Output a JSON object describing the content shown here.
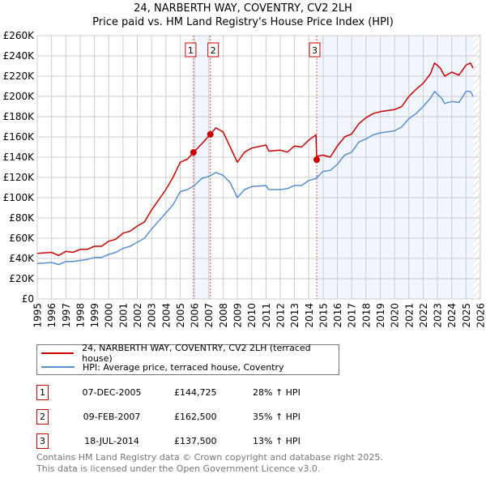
{
  "chart_data": {
    "type": "line",
    "title": "24, NARBERTH WAY, COVENTRY, CV2 2LH",
    "subtitle": "Price paid vs. HM Land Registry's House Price Index (HPI)",
    "xlim": [
      1995,
      2026
    ],
    "ylim": [
      0,
      260000
    ],
    "grid": true,
    "x_ticks": [
      "1995",
      "1996",
      "1997",
      "1998",
      "1999",
      "2000",
      "2001",
      "2002",
      "2003",
      "2004",
      "2005",
      "2006",
      "2007",
      "2008",
      "2009",
      "2010",
      "2011",
      "2012",
      "2013",
      "2014",
      "2015",
      "2016",
      "2017",
      "2018",
      "2019",
      "2020",
      "2021",
      "2022",
      "2023",
      "2024",
      "2025",
      "2026"
    ],
    "y_ticks": [
      "£0",
      "£20K",
      "£40K",
      "£60K",
      "£80K",
      "£100K",
      "£120K",
      "£140K",
      "£160K",
      "£180K",
      "£200K",
      "£220K",
      "£240K",
      "£260K"
    ],
    "series": [
      {
        "name": "24, NARBERTH WAY, COVENTRY, CV2 2LH (terraced house)",
        "color": "#cc0000",
        "x": [
          1995,
          1996,
          1996.5,
          1997,
          1997.5,
          1998,
          1998.5,
          1999,
          1999.5,
          2000,
          2000.5,
          2001,
          2001.5,
          2002,
          2002.5,
          2003,
          2003.5,
          2004,
          2004.5,
          2005,
          2005.5,
          2005.93,
          2006.5,
          2007.1,
          2007.5,
          2008,
          2008.5,
          2009,
          2009.5,
          2010,
          2011,
          2011.2,
          2012,
          2012.5,
          2013,
          2013.5,
          2014,
          2014.5,
          2014.55,
          2014.6,
          2015,
          2015.5,
          2016,
          2016.5,
          2017,
          2017.5,
          2018,
          2018.5,
          2019,
          2019.5,
          2020,
          2020.5,
          2021,
          2021.5,
          2022,
          2022.5,
          2022.8,
          2023.2,
          2023.5,
          2024,
          2024.5,
          2025,
          2025.3,
          2025.5
        ],
        "y": [
          45000,
          46000,
          43000,
          47000,
          46000,
          49000,
          49000,
          52000,
          52000,
          57000,
          59000,
          65000,
          67000,
          72000,
          76000,
          88000,
          98000,
          108000,
          120000,
          135000,
          138000,
          144725,
          153000,
          162500,
          169000,
          165000,
          150000,
          135000,
          145000,
          149000,
          152000,
          146000,
          147000,
          145000,
          151000,
          150000,
          157000,
          162000,
          137500,
          141000,
          142000,
          140000,
          151000,
          160000,
          163000,
          173000,
          179000,
          183000,
          185000,
          186000,
          187000,
          190000,
          200000,
          207000,
          213000,
          222000,
          233000,
          228000,
          220000,
          224000,
          221000,
          231000,
          233000,
          228000
        ]
      },
      {
        "name": "HPI: Average price, terraced house, Coventry",
        "color": "#5b8fd4",
        "x": [
          1995,
          1996,
          1996.5,
          1997,
          1997.5,
          1998,
          1998.5,
          1999,
          1999.5,
          2000,
          2000.5,
          2001,
          2001.5,
          2002,
          2002.5,
          2003,
          2003.5,
          2004,
          2004.5,
          2005,
          2005.5,
          2006,
          2006.5,
          2007,
          2007.5,
          2008,
          2008.5,
          2009,
          2009.5,
          2010,
          2011,
          2011.2,
          2012,
          2012.5,
          2013,
          2013.5,
          2014,
          2014.5,
          2015,
          2015.5,
          2016,
          2016.5,
          2017,
          2017.5,
          2018,
          2018.5,
          2019,
          2019.5,
          2020,
          2020.5,
          2021,
          2021.5,
          2022,
          2022.5,
          2022.8,
          2023.3,
          2023.5,
          2024,
          2024.5,
          2025,
          2025.3,
          2025.5
        ],
        "y": [
          35000,
          36000,
          34000,
          37000,
          37000,
          38000,
          39000,
          41000,
          41000,
          44000,
          46000,
          50000,
          52000,
          56000,
          60000,
          69000,
          77000,
          85000,
          93000,
          106000,
          108000,
          112000,
          119000,
          121000,
          125000,
          122000,
          115000,
          100000,
          108000,
          111000,
          112000,
          108000,
          108000,
          109000,
          112000,
          112000,
          117000,
          119000,
          126000,
          127000,
          133000,
          142000,
          145000,
          155000,
          158000,
          162000,
          164000,
          165000,
          166000,
          170000,
          178000,
          183000,
          190000,
          198000,
          205000,
          198000,
          193000,
          195000,
          194000,
          205000,
          205000,
          200000
        ]
      }
    ],
    "shaded_ranges": [
      [
        2005.93,
        2007.11
      ],
      [
        2014.55,
        2025.5
      ]
    ],
    "hatched_from": 2025.5,
    "sales": [
      {
        "label": "1",
        "date": "07-DEC-2005",
        "x": 2005.93,
        "price": "£144,725",
        "value": 144725,
        "hpi": "28% ↑ HPI"
      },
      {
        "label": "2",
        "date": "09-FEB-2007",
        "x": 2007.11,
        "price": "£162,500",
        "value": 162500,
        "hpi": "35% ↑ HPI"
      },
      {
        "label": "3",
        "date": "18-JUL-2014",
        "x": 2014.55,
        "price": "£137,500",
        "value": 137500,
        "hpi": "13% ↑ HPI"
      }
    ]
  },
  "footer": {
    "line1": "Contains HM Land Registry data © Crown copyright and database right 2025.",
    "line2": "This data is licensed under the Open Government Licence v3.0."
  }
}
